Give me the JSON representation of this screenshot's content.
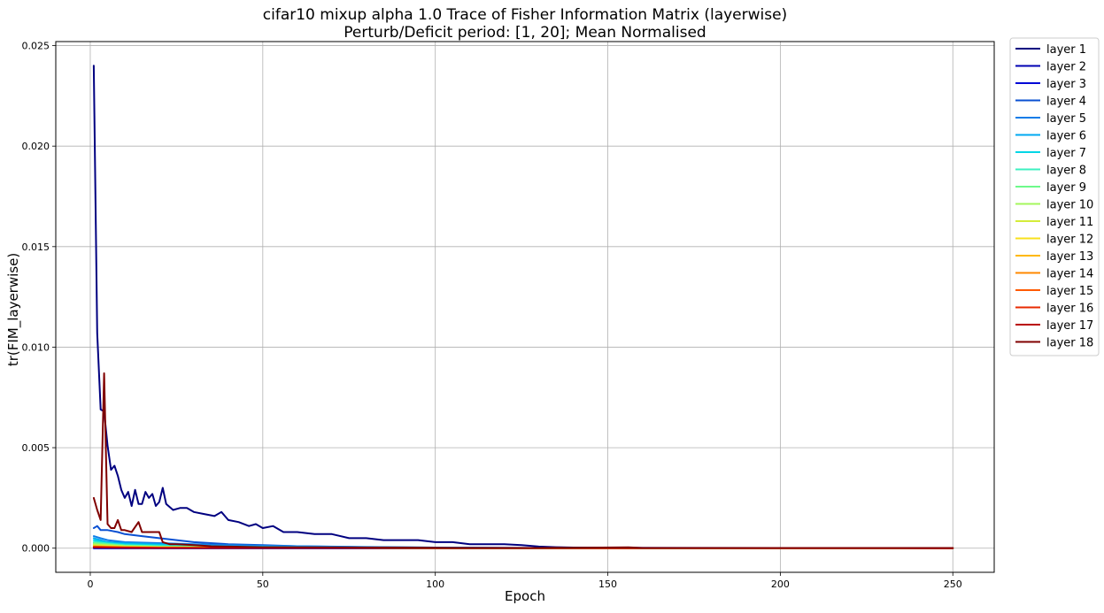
{
  "chart_data": {
    "type": "line",
    "title": "cifar10 mixup alpha 1.0 Trace of Fisher Information Matrix (layerwise)",
    "subtitle": "Perturb/Deficit period: [1, 20]; Mean Normalised",
    "xlabel": "Epoch",
    "ylabel": "tr(FIM_layerwise)",
    "xlim": [
      -10,
      262
    ],
    "ylim": [
      -0.0012,
      0.0252
    ],
    "xticks": [
      0,
      50,
      100,
      150,
      200,
      250
    ],
    "yticks": [
      0.0,
      0.005,
      0.01,
      0.015,
      0.02,
      0.025
    ],
    "ytick_labels": [
      "0.000",
      "0.005",
      "0.010",
      "0.015",
      "0.020",
      "0.025"
    ],
    "grid": true,
    "legend_position": "outside right, top",
    "series": [
      {
        "name": "layer 1",
        "color": "#000080",
        "points": [
          [
            1,
            0.024
          ],
          [
            2,
            0.0107
          ],
          [
            3,
            0.0069
          ],
          [
            4,
            0.0068
          ],
          [
            5,
            0.0051
          ],
          [
            6,
            0.0039
          ],
          [
            7,
            0.0041
          ],
          [
            8,
            0.0036
          ],
          [
            9,
            0.0029
          ],
          [
            10,
            0.0025
          ],
          [
            11,
            0.0028
          ],
          [
            12,
            0.0021
          ],
          [
            13,
            0.0029
          ],
          [
            14,
            0.0022
          ],
          [
            15,
            0.0022
          ],
          [
            16,
            0.0028
          ],
          [
            17,
            0.0025
          ],
          [
            18,
            0.0027
          ],
          [
            19,
            0.0021
          ],
          [
            20,
            0.0023
          ],
          [
            21,
            0.003
          ],
          [
            22,
            0.0022
          ],
          [
            24,
            0.0019
          ],
          [
            26,
            0.002
          ],
          [
            28,
            0.002
          ],
          [
            30,
            0.0018
          ],
          [
            33,
            0.0017
          ],
          [
            36,
            0.0016
          ],
          [
            38,
            0.0018
          ],
          [
            40,
            0.0014
          ],
          [
            43,
            0.0013
          ],
          [
            46,
            0.0011
          ],
          [
            48,
            0.0012
          ],
          [
            50,
            0.001
          ],
          [
            53,
            0.0011
          ],
          [
            56,
            0.0008
          ],
          [
            60,
            0.0008
          ],
          [
            65,
            0.0007
          ],
          [
            70,
            0.0007
          ],
          [
            75,
            0.0005
          ],
          [
            80,
            0.0005
          ],
          [
            85,
            0.0004
          ],
          [
            90,
            0.0004
          ],
          [
            95,
            0.0004
          ],
          [
            100,
            0.0003
          ],
          [
            105,
            0.0003
          ],
          [
            110,
            0.0002
          ],
          [
            115,
            0.0002
          ],
          [
            120,
            0.0002
          ],
          [
            125,
            0.00015
          ],
          [
            130,
            8e-05
          ],
          [
            135,
            5e-05
          ],
          [
            140,
            3e-05
          ],
          [
            150,
            2e-05
          ],
          [
            200,
            1e-05
          ],
          [
            250,
            1e-05
          ]
        ]
      },
      {
        "name": "layer 2",
        "color": "#0000b3",
        "points": [
          [
            1,
            0.0
          ],
          [
            50,
            0.0
          ],
          [
            100,
            0.0
          ],
          [
            150,
            0.0
          ],
          [
            200,
            0.0
          ],
          [
            250,
            0.0
          ]
        ]
      },
      {
        "name": "layer 3",
        "color": "#0008d6",
        "points": [
          [
            1,
            0.0
          ],
          [
            50,
            0.0
          ],
          [
            100,
            0.0
          ],
          [
            150,
            0.0
          ],
          [
            200,
            0.0
          ],
          [
            250,
            0.0
          ]
        ]
      },
      {
        "name": "layer 4",
        "color": "#0a50d2",
        "points": [
          [
            1,
            0.001
          ],
          [
            2,
            0.0011
          ],
          [
            3,
            0.0009
          ],
          [
            5,
            0.0009
          ],
          [
            8,
            0.0008
          ],
          [
            10,
            0.0007
          ],
          [
            15,
            0.0006
          ],
          [
            20,
            0.0005
          ],
          [
            25,
            0.0004
          ],
          [
            30,
            0.0003
          ],
          [
            40,
            0.0002
          ],
          [
            50,
            0.00015
          ],
          [
            60,
            0.0001
          ],
          [
            80,
            6e-05
          ],
          [
            100,
            3e-05
          ],
          [
            130,
            1e-05
          ],
          [
            150,
            0.0
          ],
          [
            250,
            0.0
          ]
        ]
      },
      {
        "name": "layer 5",
        "color": "#0f7ce8",
        "points": [
          [
            1,
            0.0006
          ],
          [
            3,
            0.0005
          ],
          [
            5,
            0.0004
          ],
          [
            10,
            0.0003
          ],
          [
            20,
            0.00025
          ],
          [
            30,
            0.0002
          ],
          [
            40,
            0.00015
          ],
          [
            60,
            0.0001
          ],
          [
            80,
            5e-05
          ],
          [
            100,
            3e-05
          ],
          [
            130,
            1e-05
          ],
          [
            150,
            0.0
          ],
          [
            250,
            0.0
          ]
        ]
      },
      {
        "name": "layer 6",
        "color": "#00a8f0",
        "points": [
          [
            1,
            0.0005
          ],
          [
            5,
            0.0003
          ],
          [
            10,
            0.00025
          ],
          [
            20,
            0.0002
          ],
          [
            40,
            0.0001
          ],
          [
            60,
            6e-05
          ],
          [
            100,
            2e-05
          ],
          [
            150,
            0.0
          ],
          [
            250,
            0.0
          ]
        ]
      },
      {
        "name": "layer 7",
        "color": "#00d6e6",
        "points": [
          [
            1,
            0.0004
          ],
          [
            5,
            0.00025
          ],
          [
            10,
            0.0002
          ],
          [
            20,
            0.00015
          ],
          [
            40,
            8e-05
          ],
          [
            60,
            4e-05
          ],
          [
            100,
            1e-05
          ],
          [
            150,
            0.0
          ],
          [
            250,
            0.0
          ]
        ]
      },
      {
        "name": "layer 8",
        "color": "#3cf0c0",
        "points": [
          [
            1,
            0.0003
          ],
          [
            10,
            0.00015
          ],
          [
            20,
            0.0001
          ],
          [
            40,
            5e-05
          ],
          [
            100,
            1e-05
          ],
          [
            150,
            0.0
          ],
          [
            250,
            0.0
          ]
        ]
      },
      {
        "name": "layer 9",
        "color": "#6dfa8a",
        "points": [
          [
            1,
            0.00025
          ],
          [
            10,
            0.00012
          ],
          [
            20,
            8e-05
          ],
          [
            40,
            4e-05
          ],
          [
            100,
            1e-05
          ],
          [
            250,
            0.0
          ]
        ]
      },
      {
        "name": "layer 10",
        "color": "#a4f75c",
        "points": [
          [
            1,
            0.0002
          ],
          [
            10,
            0.0001
          ],
          [
            20,
            6e-05
          ],
          [
            40,
            3e-05
          ],
          [
            100,
            0.0
          ],
          [
            250,
            0.0
          ]
        ]
      },
      {
        "name": "layer 11",
        "color": "#d4ec3a",
        "points": [
          [
            1,
            0.00015
          ],
          [
            10,
            8e-05
          ],
          [
            20,
            5e-05
          ],
          [
            50,
            2e-05
          ],
          [
            100,
            0.0
          ],
          [
            250,
            0.0
          ]
        ]
      },
      {
        "name": "layer 12",
        "color": "#f8e01c",
        "points": [
          [
            1,
            0.0001
          ],
          [
            10,
            6e-05
          ],
          [
            20,
            4e-05
          ],
          [
            50,
            1e-05
          ],
          [
            250,
            0.0
          ]
        ]
      },
      {
        "name": "layer 13",
        "color": "#ffb800",
        "points": [
          [
            1,
            0.0001
          ],
          [
            10,
            5e-05
          ],
          [
            20,
            3e-05
          ],
          [
            50,
            1e-05
          ],
          [
            250,
            0.0
          ]
        ]
      },
      {
        "name": "layer 14",
        "color": "#ff8800",
        "points": [
          [
            1,
            8e-05
          ],
          [
            10,
            4e-05
          ],
          [
            20,
            2e-05
          ],
          [
            50,
            1e-05
          ],
          [
            250,
            0.0
          ]
        ]
      },
      {
        "name": "layer 15",
        "color": "#ff5a00",
        "points": [
          [
            1,
            6e-05
          ],
          [
            10,
            3e-05
          ],
          [
            20,
            2e-05
          ],
          [
            250,
            0.0
          ]
        ]
      },
      {
        "name": "layer 16",
        "color": "#e82a00",
        "points": [
          [
            1,
            5e-05
          ],
          [
            10,
            3e-05
          ],
          [
            20,
            1e-05
          ],
          [
            250,
            0.0
          ]
        ]
      },
      {
        "name": "layer 17",
        "color": "#b90000",
        "points": [
          [
            1,
            4e-05
          ],
          [
            10,
            2e-05
          ],
          [
            20,
            1e-05
          ],
          [
            250,
            0.0
          ]
        ]
      },
      {
        "name": "layer 18",
        "color": "#800000",
        "points": [
          [
            1,
            0.0025
          ],
          [
            2,
            0.0019
          ],
          [
            3,
            0.0014
          ],
          [
            4,
            0.0087
          ],
          [
            5,
            0.0012
          ],
          [
            6,
            0.001
          ],
          [
            7,
            0.001
          ],
          [
            8,
            0.0014
          ],
          [
            9,
            0.0009
          ],
          [
            10,
            0.0009
          ],
          [
            12,
            0.0008
          ],
          [
            14,
            0.0013
          ],
          [
            15,
            0.0008
          ],
          [
            17,
            0.0008
          ],
          [
            19,
            0.0008
          ],
          [
            20,
            0.0008
          ],
          [
            21,
            0.0003
          ],
          [
            23,
            0.0002
          ],
          [
            25,
            0.0002
          ],
          [
            30,
            0.00015
          ],
          [
            35,
            0.0001
          ],
          [
            40,
            8e-05
          ],
          [
            50,
            5e-05
          ],
          [
            80,
            3e-05
          ],
          [
            100,
            2e-05
          ],
          [
            130,
            1e-05
          ],
          [
            156,
            4e-05
          ],
          [
            160,
            1e-05
          ],
          [
            200,
            1e-05
          ],
          [
            250,
            1e-05
          ]
        ]
      }
    ]
  }
}
